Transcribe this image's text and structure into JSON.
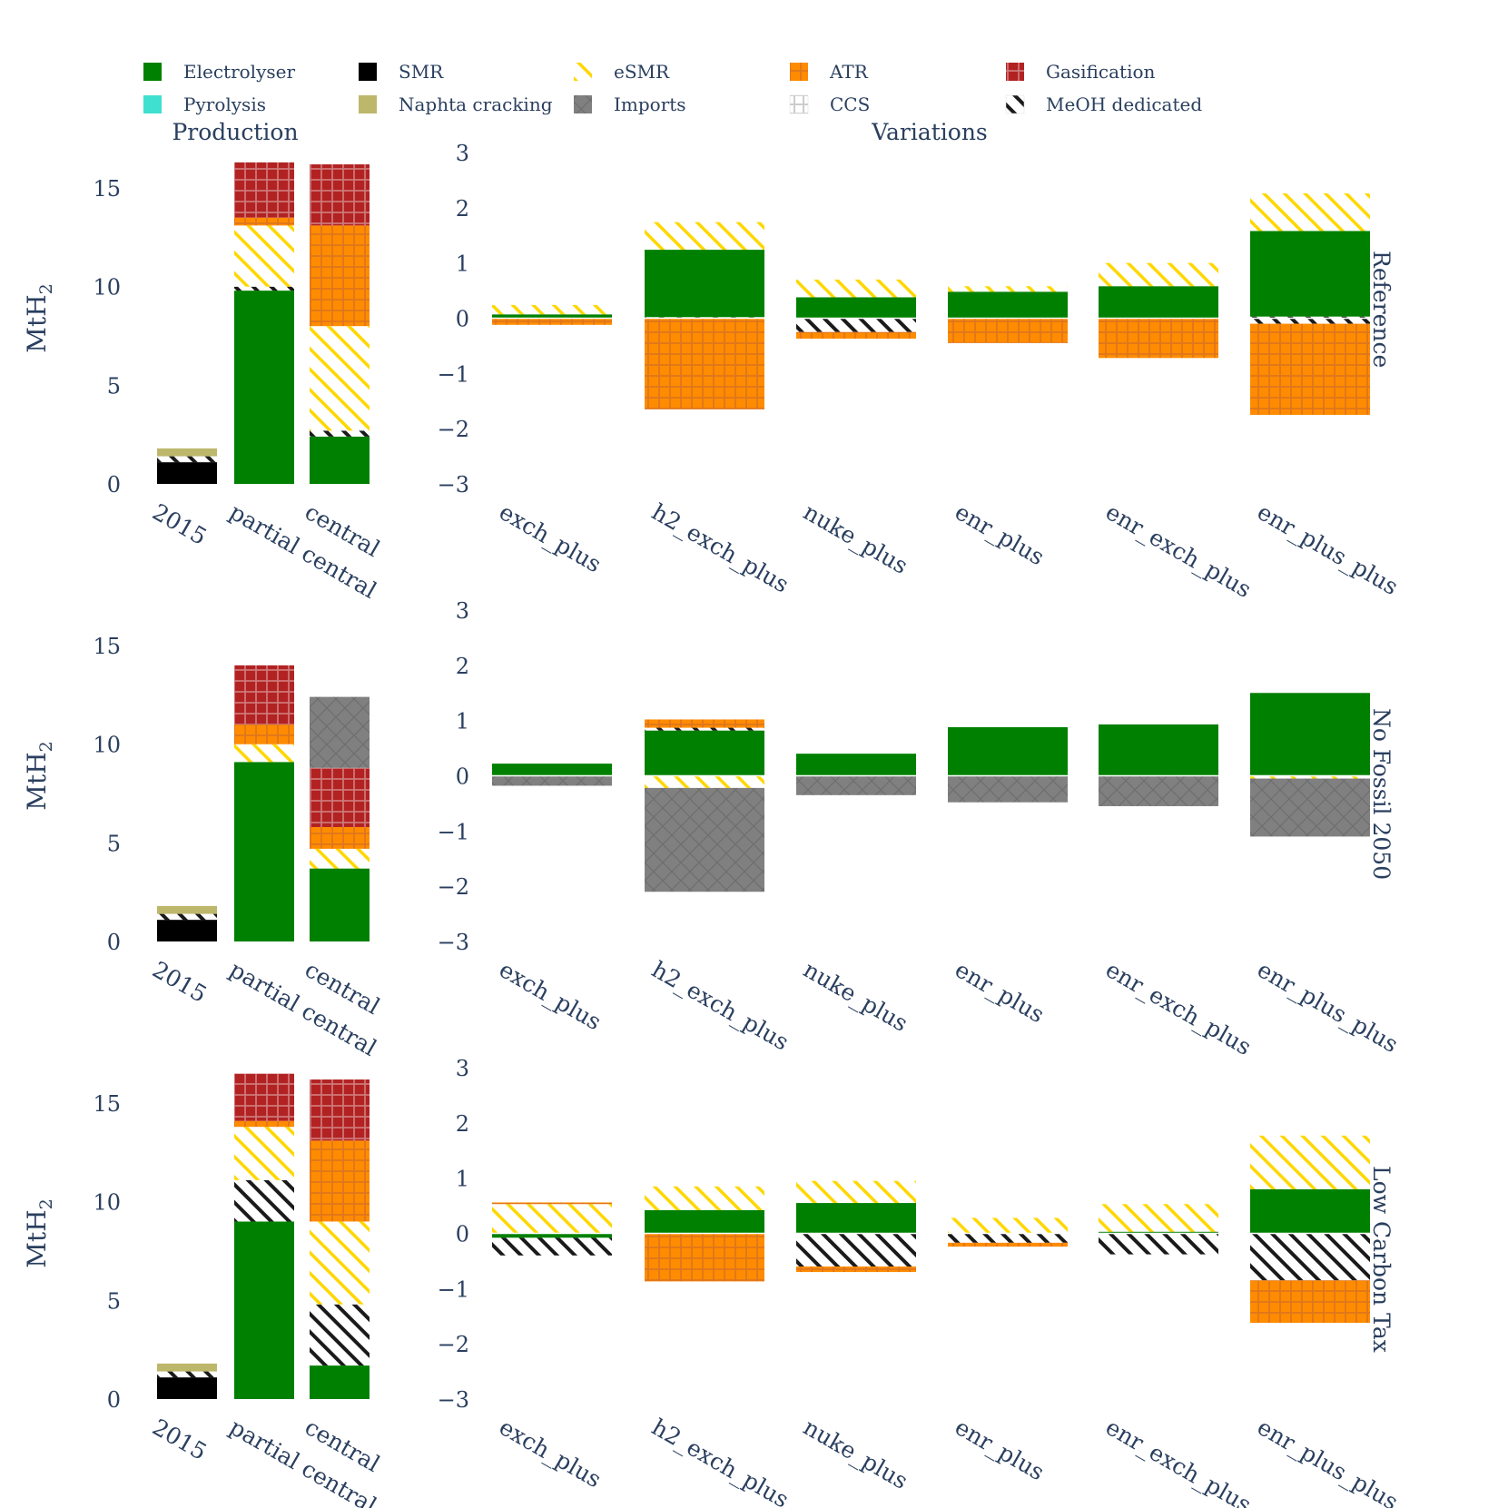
{
  "legend": [
    {
      "key": "electrolyser",
      "label": "Electrolyser"
    },
    {
      "key": "smr",
      "label": "SMR"
    },
    {
      "key": "esmr",
      "label": "eSMR"
    },
    {
      "key": "atr",
      "label": "ATR"
    },
    {
      "key": "gasification",
      "label": "Gasification"
    },
    {
      "key": "pyrolysis",
      "label": "Pyrolysis"
    },
    {
      "key": "naphta",
      "label": "Naphta cracking"
    },
    {
      "key": "imports",
      "label": "Imports"
    },
    {
      "key": "ccs",
      "label": "CCS"
    },
    {
      "key": "meoh",
      "label": "MeOH dedicated"
    }
  ],
  "colors": {
    "electrolyser": "#008000",
    "smr": "#000000",
    "esmr": "#ffd700",
    "atr": "#ff8c00",
    "gasification": "#b22222",
    "pyrolysis": "#40e0d0",
    "naphta": "#bdb76b",
    "imports": "#808080",
    "ccs": "#ffffff",
    "meoh": "#ffffff"
  },
  "column_titles": {
    "production": "Production",
    "variations": "Variations"
  },
  "ylabel": "MtH",
  "ylabel_sub": "2",
  "chart_data": [
    {
      "row_label": "Reference",
      "production": {
        "type": "bar",
        "categories": [
          "2015",
          "partial central",
          "central"
        ],
        "ylim": [
          0,
          16.8
        ],
        "ticks": [
          0,
          5,
          10,
          15
        ],
        "stacks": [
          [
            {
              "k": "smr",
              "v": 1.1
            },
            {
              "k": "meoh",
              "v": 0.3
            },
            {
              "k": "naphta",
              "v": 0.4
            }
          ],
          [
            {
              "k": "electrolyser",
              "v": 9.8
            },
            {
              "k": "meoh",
              "v": 0.2
            },
            {
              "k": "esmr",
              "v": 3.1
            },
            {
              "k": "atr",
              "v": 0.4
            },
            {
              "k": "gasification",
              "v": 2.8
            }
          ],
          [
            {
              "k": "electrolyser",
              "v": 2.4
            },
            {
              "k": "meoh",
              "v": 0.3
            },
            {
              "k": "esmr",
              "v": 5.3
            },
            {
              "k": "atr",
              "v": 5.1
            },
            {
              "k": "gasification",
              "v": 3.1
            }
          ]
        ]
      },
      "variations": {
        "type": "bar",
        "categories": [
          "exch_plus",
          "h2_exch_plus",
          "nuke_plus",
          "enr_plus",
          "enr_exch_plus",
          "enr_plus_plus"
        ],
        "ylim": [
          -3,
          3
        ],
        "ticks": [
          -3,
          -2,
          -1,
          0,
          1,
          2,
          3
        ],
        "bars": [
          {
            "pos": [
              {
                "k": "electrolyser",
                "v": 0.07
              },
              {
                "k": "esmr",
                "v": 0.17
              }
            ],
            "neg": [
              {
                "k": "atr",
                "v": 0.12
              }
            ]
          },
          {
            "pos": [
              {
                "k": "meoh",
                "v": 0.02
              },
              {
                "k": "electrolyser",
                "v": 1.22
              },
              {
                "k": "esmr",
                "v": 0.5
              }
            ],
            "neg": [
              {
                "k": "atr",
                "v": 1.65
              }
            ]
          },
          {
            "pos": [
              {
                "k": "electrolyser",
                "v": 0.38
              },
              {
                "k": "esmr",
                "v": 0.32
              }
            ],
            "neg": [
              {
                "k": "meoh",
                "v": 0.25
              },
              {
                "k": "atr",
                "v": 0.12
              }
            ]
          },
          {
            "pos": [
              {
                "k": "electrolyser",
                "v": 0.48
              },
              {
                "k": "esmr",
                "v": 0.1
              }
            ],
            "neg": [
              {
                "k": "atr",
                "v": 0.45
              }
            ]
          },
          {
            "pos": [
              {
                "k": "electrolyser",
                "v": 0.58
              },
              {
                "k": "esmr",
                "v": 0.42
              }
            ],
            "neg": [
              {
                "k": "atr",
                "v": 0.72
              }
            ]
          },
          {
            "pos": [
              {
                "k": "meoh",
                "v": 0.03
              },
              {
                "k": "electrolyser",
                "v": 1.55
              },
              {
                "k": "esmr",
                "v": 0.68
              }
            ],
            "neg": [
              {
                "k": "meoh",
                "v": 0.1
              },
              {
                "k": "atr",
                "v": 1.65
              }
            ]
          }
        ]
      }
    },
    {
      "row_label": "No Fossil 2050",
      "production": {
        "type": "bar",
        "categories": [
          "2015",
          "partial central",
          "central"
        ],
        "ylim": [
          0,
          16.8
        ],
        "ticks": [
          0,
          5,
          10,
          15
        ],
        "stacks": [
          [
            {
              "k": "smr",
              "v": 1.1
            },
            {
              "k": "meoh",
              "v": 0.3
            },
            {
              "k": "naphta",
              "v": 0.4
            }
          ],
          [
            {
              "k": "electrolyser",
              "v": 9.1
            },
            {
              "k": "esmr",
              "v": 0.9
            },
            {
              "k": "atr",
              "v": 1.0
            },
            {
              "k": "gasification",
              "v": 3.0
            }
          ],
          [
            {
              "k": "electrolyser",
              "v": 3.7
            },
            {
              "k": "esmr",
              "v": 1.0
            },
            {
              "k": "atr",
              "v": 1.1
            },
            {
              "k": "gasification",
              "v": 3.0
            },
            {
              "k": "imports",
              "v": 3.6
            }
          ]
        ]
      },
      "variations": {
        "type": "bar",
        "categories": [
          "exch_plus",
          "h2_exch_plus",
          "nuke_plus",
          "enr_plus",
          "enr_exch_plus",
          "enr_plus_plus"
        ],
        "ylim": [
          -3,
          3
        ],
        "ticks": [
          -3,
          -2,
          -1,
          0,
          1,
          2,
          3
        ],
        "bars": [
          {
            "pos": [
              {
                "k": "electrolyser",
                "v": 0.22
              }
            ],
            "neg": [
              {
                "k": "imports",
                "v": 0.18
              }
            ]
          },
          {
            "pos": [
              {
                "k": "electrolyser",
                "v": 0.82
              },
              {
                "k": "meoh",
                "v": 0.05
              },
              {
                "k": "atr",
                "v": 0.15
              }
            ],
            "neg": [
              {
                "k": "esmr",
                "v": 0.22
              },
              {
                "k": "imports",
                "v": 1.88
              }
            ]
          },
          {
            "pos": [
              {
                "k": "electrolyser",
                "v": 0.4
              }
            ],
            "neg": [
              {
                "k": "imports",
                "v": 0.35
              }
            ]
          },
          {
            "pos": [
              {
                "k": "electrolyser",
                "v": 0.88
              }
            ],
            "neg": [
              {
                "k": "imports",
                "v": 0.48
              }
            ]
          },
          {
            "pos": [
              {
                "k": "electrolyser",
                "v": 0.93
              }
            ],
            "neg": [
              {
                "k": "imports",
                "v": 0.55
              }
            ]
          },
          {
            "pos": [
              {
                "k": "electrolyser",
                "v": 1.5
              }
            ],
            "neg": [
              {
                "k": "esmr",
                "v": 0.05
              },
              {
                "k": "imports",
                "v": 1.05
              }
            ]
          }
        ]
      }
    },
    {
      "row_label": "Low Carbon Tax",
      "production": {
        "type": "bar",
        "categories": [
          "2015",
          "partial central",
          "central"
        ],
        "ylim": [
          0,
          16.8
        ],
        "ticks": [
          0,
          5,
          10,
          15
        ],
        "stacks": [
          [
            {
              "k": "smr",
              "v": 1.1
            },
            {
              "k": "meoh",
              "v": 0.3
            },
            {
              "k": "naphta",
              "v": 0.4
            }
          ],
          [
            {
              "k": "electrolyser",
              "v": 9.0
            },
            {
              "k": "meoh",
              "v": 2.1
            },
            {
              "k": "esmr",
              "v": 2.7
            },
            {
              "k": "atr",
              "v": 0.3
            },
            {
              "k": "gasification",
              "v": 2.4
            }
          ],
          [
            {
              "k": "electrolyser",
              "v": 1.7
            },
            {
              "k": "meoh",
              "v": 3.1
            },
            {
              "k": "esmr",
              "v": 4.2
            },
            {
              "k": "atr",
              "v": 4.1
            },
            {
              "k": "gasification",
              "v": 3.1
            }
          ]
        ]
      },
      "variations": {
        "type": "bar",
        "categories": [
          "exch_plus",
          "h2_exch_plus",
          "nuke_plus",
          "enr_plus",
          "enr_exch_plus",
          "enr_plus_plus"
        ],
        "ylim": [
          -3,
          3
        ],
        "ticks": [
          -3,
          -2,
          -1,
          0,
          1,
          2,
          3
        ],
        "bars": [
          {
            "pos": [
              {
                "k": "esmr",
                "v": 0.53
              },
              {
                "k": "atr",
                "v": 0.03
              }
            ],
            "neg": [
              {
                "k": "electrolyser",
                "v": 0.08
              },
              {
                "k": "meoh",
                "v": 0.32
              }
            ]
          },
          {
            "pos": [
              {
                "k": "electrolyser",
                "v": 0.42
              },
              {
                "k": "esmr",
                "v": 0.43
              }
            ],
            "neg": [
              {
                "k": "atr",
                "v": 0.87
              }
            ]
          },
          {
            "pos": [
              {
                "k": "electrolyser",
                "v": 0.55
              },
              {
                "k": "esmr",
                "v": 0.4
              }
            ],
            "neg": [
              {
                "k": "meoh",
                "v": 0.6
              },
              {
                "k": "atr",
                "v": 0.1
              }
            ]
          },
          {
            "pos": [
              {
                "k": "esmr",
                "v": 0.28
              }
            ],
            "neg": [
              {
                "k": "meoh",
                "v": 0.17
              },
              {
                "k": "atr",
                "v": 0.07
              }
            ]
          },
          {
            "pos": [
              {
                "k": "electrolyser",
                "v": 0.03
              },
              {
                "k": "esmr",
                "v": 0.5
              }
            ],
            "neg": [
              {
                "k": "meoh",
                "v": 0.38
              }
            ]
          },
          {
            "pos": [
              {
                "k": "electrolyser",
                "v": 0.8
              },
              {
                "k": "esmr",
                "v": 0.97
              }
            ],
            "neg": [
              {
                "k": "meoh",
                "v": 0.85
              },
              {
                "k": "atr",
                "v": 0.77
              }
            ]
          }
        ]
      }
    }
  ]
}
